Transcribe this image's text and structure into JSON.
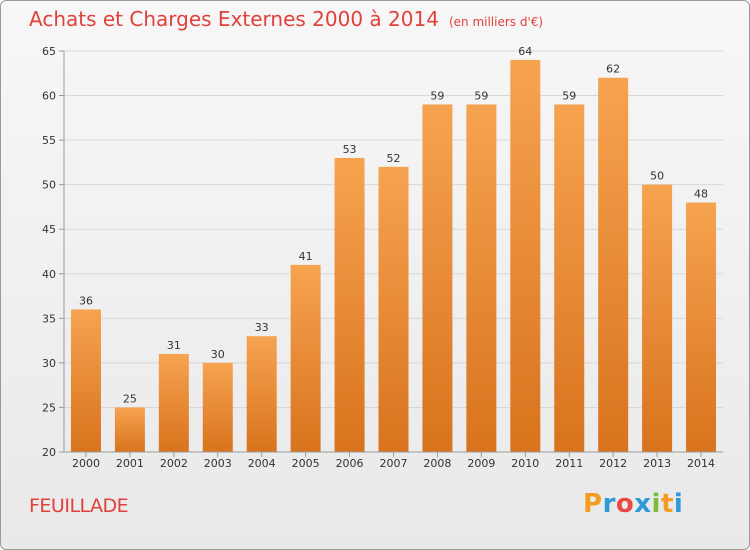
{
  "header": {
    "title": "Achats et Charges Externes 2000 à 2014",
    "unit": "(en milliers d'€)"
  },
  "footer": {
    "commune": "FEUILLADE",
    "logo_letters": [
      "P",
      "r",
      "o",
      "x",
      "i",
      "t",
      "i"
    ]
  },
  "colors": {
    "title": "#e0413b",
    "bar_top": "#f6a350",
    "bar_bottom": "#d9731d",
    "grid": "#d7d7d7",
    "axis": "#9a9a9a",
    "logo": [
      "#f39c21",
      "#2f9ad7",
      "#e94a44",
      "#2f9ad7",
      "#7dbb3f",
      "#f39c21",
      "#2f9ad7"
    ]
  },
  "chart_data": {
    "type": "bar",
    "title": "Achats et Charges Externes 2000 à 2014",
    "xlabel": "",
    "ylabel": "",
    "categories": [
      "2000",
      "2001",
      "2002",
      "2003",
      "2004",
      "2005",
      "2006",
      "2007",
      "2008",
      "2009",
      "2010",
      "2011",
      "2012",
      "2013",
      "2014"
    ],
    "values": [
      36,
      25,
      31,
      30,
      33,
      41,
      53,
      52,
      59,
      59,
      64,
      59,
      62,
      50,
      48
    ],
    "ylim": [
      20,
      65
    ],
    "yticks": [
      20,
      25,
      30,
      35,
      40,
      45,
      50,
      55,
      60,
      65
    ],
    "grid": true
  }
}
